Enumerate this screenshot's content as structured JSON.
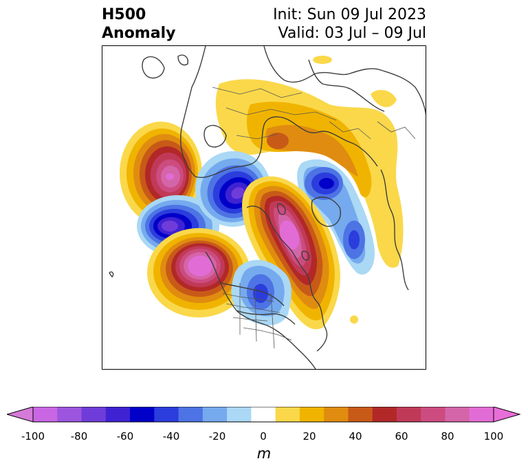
{
  "title": {
    "left_line1": "H500",
    "left_line2": "Anomaly",
    "right_line1": "Init: Sun 09 Jul 2023",
    "right_line2": "Valid: 03 Jul – 09 Jul"
  },
  "map": {
    "projection": "polar-stereographic",
    "region": "Northern Hemisphere",
    "features": [
      "anomaly-shading",
      "coastlines",
      "country-borders",
      "state-borders"
    ]
  },
  "colorbar": {
    "unit": "m",
    "extend": "both",
    "ticks": [
      "-100",
      "-80",
      "-60",
      "-40",
      "-20",
      "0",
      "20",
      "40",
      "60",
      "80",
      "100"
    ],
    "levels": [
      -100,
      -90,
      -80,
      -70,
      -60,
      -50,
      -40,
      -30,
      -20,
      -10,
      10,
      20,
      30,
      40,
      50,
      60,
      70,
      80,
      90,
      100
    ],
    "colors": [
      "#c966e4",
      "#9c55de",
      "#6f3cd9",
      "#3f22d2",
      "#0000c8",
      "#2b3ddc",
      "#4d73e4",
      "#75aaee",
      "#aad8f5",
      "#ffffff",
      "#fad84a",
      "#f0b400",
      "#e08c10",
      "#c85a18",
      "#b22828",
      "#c03a58",
      "#cc4c80",
      "#d465a8",
      "#e26cd6"
    ],
    "under_color": "#d47ad8",
    "over_color": "#e86ed8"
  }
}
